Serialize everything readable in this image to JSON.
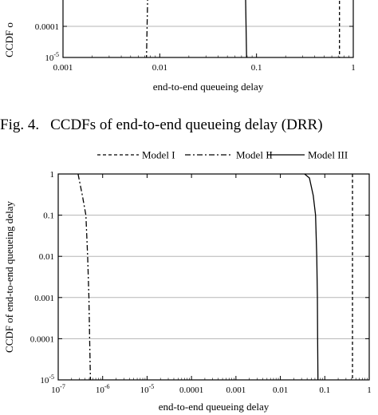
{
  "caption": {
    "figure": "Fig. 4.",
    "text": "CCDFs of end-to-end queueing delay (DRR)"
  },
  "legend": [
    {
      "name": "Model I",
      "dash": "dashed"
    },
    {
      "name": "Model II",
      "dash": "dashdot"
    },
    {
      "name": "Model III",
      "dash": "solid"
    }
  ],
  "chart_data": [
    {
      "type": "line",
      "note_partial": "cropped at top of image",
      "title": "",
      "xlabel": "end-to-end queueing delay",
      "ylabel": "CCDF o",
      "xscale": "log",
      "yscale": "log",
      "xlim": [
        0.001,
        1.0
      ],
      "ylim": [
        1e-05,
        0.001
      ],
      "x_ticks": [
        {
          "value": 0.001,
          "label": "0.001"
        },
        {
          "value": 0.01,
          "label": "0.01"
        },
        {
          "value": 0.1,
          "label": "0.1"
        },
        {
          "value": 1,
          "label": "1"
        }
      ],
      "y_ticks": [
        {
          "value": 0.0001,
          "label": "0.0001"
        },
        {
          "value": 1e-05,
          "label": "10",
          "sup": "-5"
        }
      ],
      "series": [
        {
          "name": "Model I",
          "points": [
            [
              0.72,
              0.001
            ],
            [
              0.72,
              1e-05
            ]
          ]
        },
        {
          "name": "Model II",
          "points": [
            [
              0.0075,
              0.001
            ],
            [
              0.0073,
              1e-05
            ]
          ]
        },
        {
          "name": "Model III",
          "points": [
            [
              0.077,
              0.001
            ],
            [
              0.079,
              1e-05
            ]
          ]
        }
      ]
    },
    {
      "type": "line",
      "title": "",
      "xlabel": "end-to-end queueing delay",
      "ylabel": "CCDF of end-to-end queueing delay",
      "xscale": "log",
      "yscale": "log",
      "xlim": [
        1e-07,
        1.0
      ],
      "ylim": [
        1e-05,
        1.0
      ],
      "x_ticks": [
        {
          "value": 1e-07,
          "label": "10",
          "sup": "-7"
        },
        {
          "value": 1e-06,
          "label": "10",
          "sup": "-6"
        },
        {
          "value": 1e-05,
          "label": "10",
          "sup": "-5"
        },
        {
          "value": 0.0001,
          "label": "0.0001"
        },
        {
          "value": 0.001,
          "label": "0.001"
        },
        {
          "value": 0.01,
          "label": "0.01"
        },
        {
          "value": 0.1,
          "label": "0.1"
        },
        {
          "value": 1,
          "label": "1"
        }
      ],
      "y_ticks": [
        {
          "value": 1,
          "label": "1"
        },
        {
          "value": 0.1,
          "label": "0.1"
        },
        {
          "value": 0.01,
          "label": "0.01"
        },
        {
          "value": 0.001,
          "label": "0.001"
        },
        {
          "value": 0.0001,
          "label": "0.0001"
        },
        {
          "value": 1e-05,
          "label": "10",
          "sup": "-5"
        }
      ],
      "series": [
        {
          "name": "Model I",
          "points": [
            [
              0.42,
              1.0
            ],
            [
              0.42,
              1e-05
            ]
          ]
        },
        {
          "name": "Model II",
          "points": [
            [
              2.8e-07,
              1.0
            ],
            [
              3.5e-07,
              0.3
            ],
            [
              4.2e-07,
              0.1
            ],
            [
              4.6e-07,
              0.01
            ],
            [
              4.9e-07,
              0.001
            ],
            [
              5.1e-07,
              0.0001
            ],
            [
              5.3e-07,
              1e-05
            ]
          ]
        },
        {
          "name": "Model III",
          "points": [
            [
              0.035,
              1.0
            ],
            [
              0.045,
              0.8
            ],
            [
              0.055,
              0.3
            ],
            [
              0.062,
              0.1
            ],
            [
              0.066,
              0.01
            ],
            [
              0.068,
              0.001
            ],
            [
              0.069,
              0.0001
            ],
            [
              0.07,
              1e-05
            ]
          ]
        }
      ]
    }
  ]
}
